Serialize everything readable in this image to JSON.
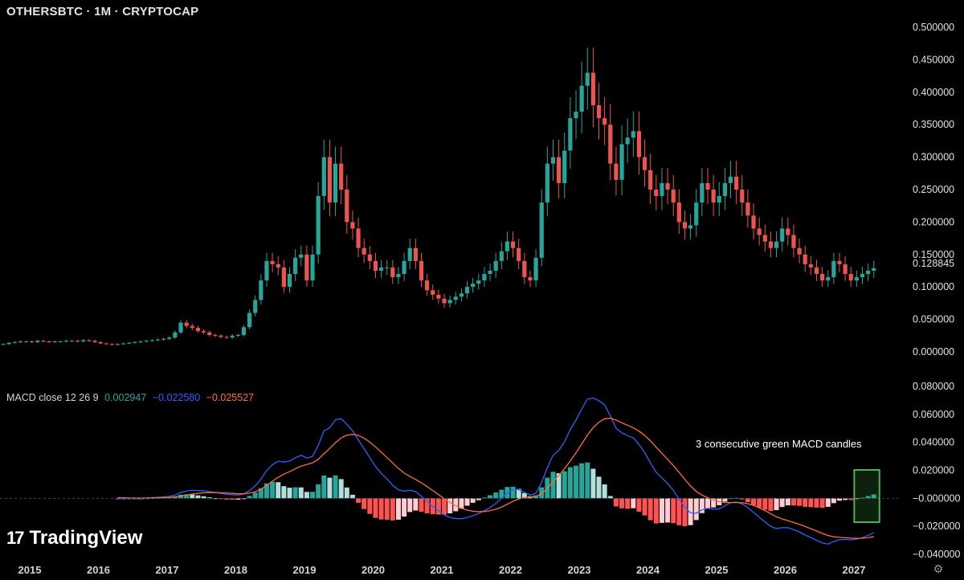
{
  "header": {
    "title": "OTHERSBTC · 1M · CRYPTOCAP"
  },
  "macd_legend": {
    "label": "MACD close 12 26 9",
    "hist_value": "0.002947",
    "macd_value": "−0.022580",
    "signal_value": "−0.025527"
  },
  "annotation": {
    "text": "3 consecutive green MACD candles"
  },
  "branding": {
    "logo_mark": "17",
    "logo_text": "TradingView"
  },
  "colors": {
    "up": "#26a69a",
    "down": "#ef5350",
    "macd_line": "#2962ff",
    "signal_line": "#ff6d3a",
    "hist_up_strong": "#26a69a",
    "hist_up_weak": "#b2dfdb",
    "hist_down_strong": "#ff5252",
    "hist_down_weak": "#ffcdd2",
    "highlight_box": "#4caf50"
  },
  "chart_data": [
    {
      "type": "candlestick",
      "title": "OTHERSBTC · 1M · CRYPTOCAP",
      "ylim": [
        0,
        0.5
      ],
      "y_ticks": [
        "0.500000",
        "0.450000",
        "0.400000",
        "0.350000",
        "0.300000",
        "0.250000",
        "0.200000",
        "0.150000",
        "0.100000",
        "0.050000",
        "0.000000"
      ],
      "last_price": "0.128845",
      "x_ticks": [
        "2015",
        "2016",
        "2017",
        "2018",
        "2019",
        "2020",
        "2021",
        "2022",
        "2023",
        "2024",
        "2025",
        "2026",
        "2027"
      ],
      "x_start": 2015.0,
      "close": [
        0.012,
        0.014,
        0.015,
        0.016,
        0.016,
        0.015,
        0.017,
        0.016,
        0.015,
        0.016,
        0.016,
        0.017,
        0.017,
        0.016,
        0.018,
        0.017,
        0.015,
        0.013,
        0.012,
        0.011,
        0.012,
        0.013,
        0.014,
        0.015,
        0.016,
        0.017,
        0.018,
        0.019,
        0.02,
        0.022,
        0.03,
        0.045,
        0.04,
        0.037,
        0.032,
        0.03,
        0.026,
        0.025,
        0.023,
        0.022,
        0.025,
        0.026,
        0.038,
        0.06,
        0.08,
        0.11,
        0.14,
        0.135,
        0.13,
        0.1,
        0.12,
        0.145,
        0.15,
        0.11,
        0.15,
        0.24,
        0.3,
        0.23,
        0.29,
        0.25,
        0.2,
        0.19,
        0.16,
        0.15,
        0.14,
        0.125,
        0.13,
        0.13,
        0.115,
        0.12,
        0.14,
        0.16,
        0.14,
        0.11,
        0.095,
        0.088,
        0.082,
        0.075,
        0.08,
        0.085,
        0.09,
        0.1,
        0.105,
        0.11,
        0.12,
        0.125,
        0.14,
        0.155,
        0.17,
        0.16,
        0.14,
        0.115,
        0.11,
        0.145,
        0.23,
        0.29,
        0.3,
        0.26,
        0.31,
        0.36,
        0.37,
        0.41,
        0.43,
        0.38,
        0.36,
        0.35,
        0.29,
        0.265,
        0.32,
        0.33,
        0.34,
        0.3,
        0.28,
        0.25,
        0.24,
        0.26,
        0.25,
        0.23,
        0.2,
        0.19,
        0.195,
        0.23,
        0.26,
        0.25,
        0.23,
        0.24,
        0.26,
        0.27,
        0.25,
        0.23,
        0.21,
        0.19,
        0.18,
        0.17,
        0.16,
        0.17,
        0.19,
        0.18,
        0.16,
        0.15,
        0.135,
        0.13,
        0.12,
        0.11,
        0.115,
        0.14,
        0.135,
        0.12,
        0.11,
        0.115,
        0.12,
        0.125,
        0.1288
      ]
    },
    {
      "type": "macd",
      "title": "MACD close 12 26 9",
      "ylim": [
        -0.04,
        0.08
      ],
      "y_ticks": [
        "0.080000",
        "0.060000",
        "0.040000",
        "0.020000",
        "−0.000000",
        "−0.020000",
        "−0.040000"
      ],
      "series": [
        {
          "name": "MACD",
          "last": -0.02258
        },
        {
          "name": "Signal",
          "last": -0.025527
        },
        {
          "name": "Histogram",
          "last": 0.002947
        }
      ]
    }
  ]
}
